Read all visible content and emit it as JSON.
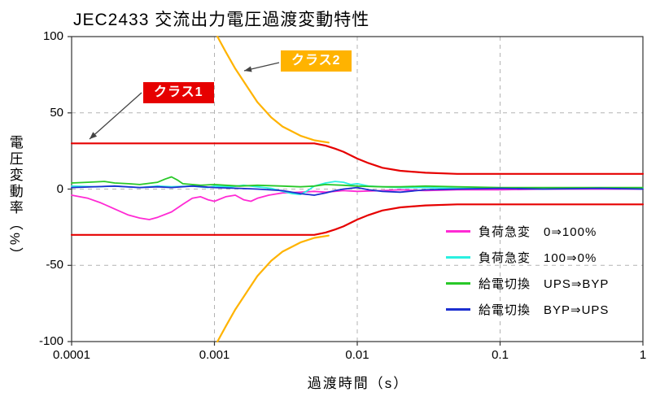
{
  "title": "JEC2433 交流出力電圧過渡変動特性",
  "axes": {
    "xlabel": "過渡時間（s）",
    "ylabel": "電圧変動率（%）"
  },
  "annotations": {
    "class1_label": "クラス1",
    "class1_color": "#e60000",
    "class2_label": "クラス2",
    "class2_color": "#ffb300"
  },
  "chart_data": {
    "type": "line",
    "title": "JEC2433 交流出力電圧過渡変動特性",
    "xlabel": "過渡時間（s）",
    "ylabel": "電圧変動率（%）",
    "xscale": "log",
    "xlim": [
      0.0001,
      1
    ],
    "ylim": [
      -100,
      100
    ],
    "x_ticks": [
      0.0001,
      0.001,
      0.01,
      0.1,
      1
    ],
    "x_tick_labels": [
      "0.0001",
      "0.001",
      "0.01",
      "0.1",
      "1"
    ],
    "y_ticks": [
      100,
      50,
      0,
      -50,
      -100
    ],
    "y_tick_labels": [
      "100",
      "50",
      "0",
      "-50",
      "-100"
    ],
    "grid": {
      "x": [
        0.001,
        0.01,
        0.1
      ],
      "y": [
        50,
        0,
        -50
      ],
      "style": "dashed",
      "color": "#b3b3b3"
    },
    "legend_position": "lower right",
    "limit_series": [
      {
        "name": "クラス1上限",
        "class": "クラス1",
        "color": "#e60000",
        "points": [
          [
            0.0001,
            30
          ],
          [
            0.005,
            30
          ],
          [
            0.006,
            28.5
          ],
          [
            0.007,
            26.5
          ],
          [
            0.008,
            24.5
          ],
          [
            0.01,
            20
          ],
          [
            0.012,
            17
          ],
          [
            0.015,
            14
          ],
          [
            0.02,
            12
          ],
          [
            0.03,
            10.7
          ],
          [
            0.05,
            10
          ],
          [
            0.1,
            10
          ],
          [
            1,
            10
          ]
        ]
      },
      {
        "name": "クラス1下限",
        "class": "クラス1",
        "color": "#e60000",
        "points": [
          [
            0.0001,
            -30
          ],
          [
            0.005,
            -30
          ],
          [
            0.006,
            -28.5
          ],
          [
            0.007,
            -26.5
          ],
          [
            0.008,
            -24.5
          ],
          [
            0.01,
            -20
          ],
          [
            0.012,
            -17
          ],
          [
            0.015,
            -14
          ],
          [
            0.02,
            -12
          ],
          [
            0.03,
            -10.7
          ],
          [
            0.05,
            -10
          ],
          [
            0.1,
            -10
          ],
          [
            1,
            -10
          ]
        ]
      },
      {
        "name": "クラス2上限",
        "class": "クラス2",
        "color": "#ffb300",
        "points": [
          [
            0.00105,
            100
          ],
          [
            0.0012,
            90
          ],
          [
            0.0014,
            79
          ],
          [
            0.0017,
            67
          ],
          [
            0.002,
            57
          ],
          [
            0.0025,
            47
          ],
          [
            0.003,
            41
          ],
          [
            0.004,
            35
          ],
          [
            0.005,
            32
          ],
          [
            0.0063,
            30.5
          ]
        ]
      },
      {
        "name": "クラス2下限",
        "class": "クラス2",
        "color": "#ffb300",
        "points": [
          [
            0.00105,
            -100
          ],
          [
            0.0012,
            -90
          ],
          [
            0.0014,
            -79
          ],
          [
            0.0017,
            -67
          ],
          [
            0.002,
            -57
          ],
          [
            0.0025,
            -47
          ],
          [
            0.003,
            -41
          ],
          [
            0.004,
            -35
          ],
          [
            0.005,
            -32
          ],
          [
            0.0063,
            -30.5
          ]
        ]
      }
    ],
    "series": [
      {
        "name": "負荷急変　0⇒100%",
        "color": "#ff2ad4",
        "points": [
          [
            0.0001,
            -4
          ],
          [
            0.00013,
            -6
          ],
          [
            0.00016,
            -9
          ],
          [
            0.0002,
            -13
          ],
          [
            0.00025,
            -17
          ],
          [
            0.0003,
            -19
          ],
          [
            0.00035,
            -20
          ],
          [
            0.0004,
            -18.5
          ],
          [
            0.0005,
            -15
          ],
          [
            0.0006,
            -10
          ],
          [
            0.0007,
            -6
          ],
          [
            0.0008,
            -5
          ],
          [
            0.0009,
            -7
          ],
          [
            0.001,
            -8
          ],
          [
            0.0012,
            -5
          ],
          [
            0.0014,
            -4
          ],
          [
            0.0016,
            -7
          ],
          [
            0.0018,
            -8
          ],
          [
            0.002,
            -6
          ],
          [
            0.0024,
            -4
          ],
          [
            0.003,
            -2.5
          ],
          [
            0.004,
            -2
          ],
          [
            0.005,
            -1.5
          ],
          [
            0.006,
            -2
          ],
          [
            0.008,
            -1
          ],
          [
            0.01,
            -1.5
          ],
          [
            0.015,
            -1
          ],
          [
            0.02,
            -0.5
          ],
          [
            0.03,
            -1
          ],
          [
            0.05,
            -0.5
          ],
          [
            0.1,
            -0.5
          ],
          [
            0.2,
            0
          ],
          [
            0.5,
            0
          ],
          [
            1,
            0
          ]
        ]
      },
      {
        "name": "負荷急変　100⇒0%",
        "color": "#2af0e0",
        "points": [
          [
            0.0001,
            2
          ],
          [
            0.00015,
            1.5
          ],
          [
            0.0002,
            2
          ],
          [
            0.0003,
            1
          ],
          [
            0.0004,
            2
          ],
          [
            0.0005,
            1.5
          ],
          [
            0.0007,
            2
          ],
          [
            0.0009,
            1
          ],
          [
            0.001,
            2
          ],
          [
            0.0013,
            1.5
          ],
          [
            0.0016,
            2.5
          ],
          [
            0.002,
            1.5
          ],
          [
            0.0025,
            0.5
          ],
          [
            0.003,
            -1.5
          ],
          [
            0.0035,
            -3
          ],
          [
            0.004,
            -3.5
          ],
          [
            0.0045,
            -1
          ],
          [
            0.005,
            2
          ],
          [
            0.006,
            4
          ],
          [
            0.007,
            5
          ],
          [
            0.008,
            4.5
          ],
          [
            0.009,
            3
          ],
          [
            0.01,
            3.5
          ],
          [
            0.012,
            2
          ],
          [
            0.015,
            1.5
          ],
          [
            0.02,
            1
          ],
          [
            0.03,
            1
          ],
          [
            0.05,
            0.5
          ],
          [
            0.1,
            0.5
          ],
          [
            0.2,
            0.5
          ],
          [
            0.5,
            0.5
          ],
          [
            1,
            0.5
          ]
        ]
      },
      {
        "name": "給電切換　UPS⇒BYP",
        "color": "#28c828",
        "points": [
          [
            0.0001,
            4
          ],
          [
            0.00013,
            4.5
          ],
          [
            0.00017,
            5
          ],
          [
            0.0002,
            4
          ],
          [
            0.00025,
            3.5
          ],
          [
            0.0003,
            3
          ],
          [
            0.0004,
            4.5
          ],
          [
            0.00045,
            6.5
          ],
          [
            0.0005,
            8
          ],
          [
            0.00055,
            6
          ],
          [
            0.0006,
            3.5
          ],
          [
            0.0008,
            2.5
          ],
          [
            0.001,
            3
          ],
          [
            0.0012,
            2.5
          ],
          [
            0.0015,
            2
          ],
          [
            0.002,
            2.5
          ],
          [
            0.003,
            2
          ],
          [
            0.004,
            1.5
          ],
          [
            0.005,
            2
          ],
          [
            0.006,
            3
          ],
          [
            0.008,
            2.5
          ],
          [
            0.01,
            2
          ],
          [
            0.015,
            1.5
          ],
          [
            0.02,
            1.5
          ],
          [
            0.03,
            2
          ],
          [
            0.05,
            1.5
          ],
          [
            0.1,
            1
          ],
          [
            0.2,
            1
          ],
          [
            0.5,
            1
          ],
          [
            1,
            1
          ]
        ]
      },
      {
        "name": "給電切換　BYP⇒UPS",
        "color": "#1c2fd0",
        "points": [
          [
            0.0001,
            1
          ],
          [
            0.0002,
            2
          ],
          [
            0.0003,
            1
          ],
          [
            0.0004,
            1.5
          ],
          [
            0.0005,
            1
          ],
          [
            0.0007,
            2
          ],
          [
            0.001,
            1
          ],
          [
            0.0015,
            0.5
          ],
          [
            0.002,
            0
          ],
          [
            0.003,
            -1
          ],
          [
            0.004,
            -3
          ],
          [
            0.005,
            -4
          ],
          [
            0.006,
            -2.5
          ],
          [
            0.007,
            -1
          ],
          [
            0.008,
            0
          ],
          [
            0.01,
            1
          ],
          [
            0.012,
            -0.5
          ],
          [
            0.015,
            -1.5
          ],
          [
            0.02,
            -2
          ],
          [
            0.03,
            -0.5
          ],
          [
            0.05,
            0
          ],
          [
            0.1,
            0.5
          ],
          [
            0.2,
            0
          ],
          [
            0.5,
            0.5
          ],
          [
            1,
            0
          ]
        ]
      }
    ]
  }
}
